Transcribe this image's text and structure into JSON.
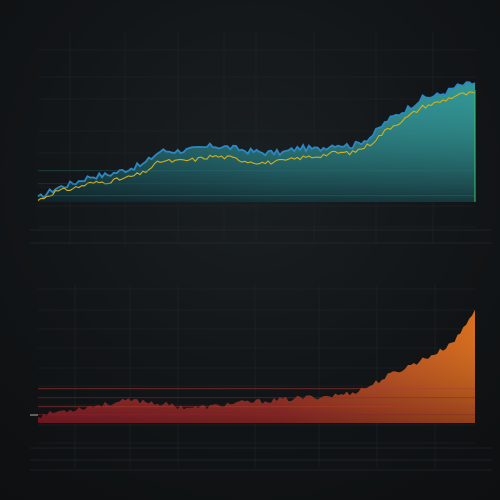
{
  "colors": {
    "background": "#111416",
    "grid": "#2a3135",
    "top_area_light": "#2f8d8e",
    "top_area_dark": "#173a44",
    "top_line_blue": "#2d87c4",
    "top_line_yellow": "#d0b11c",
    "bottom_area_red": "#8f1f2d",
    "bottom_area_orange": "#d56b1c",
    "bottom_axis_red": "#b54545"
  },
  "chart_data": [
    {
      "type": "area",
      "title": "",
      "xlabel": "",
      "ylabel": "",
      "grid": true,
      "x": [
        0,
        4,
        8,
        12,
        16,
        20,
        24,
        28,
        32,
        36,
        40,
        44,
        48,
        52,
        56,
        60,
        64,
        68,
        72,
        76,
        80,
        84,
        88,
        92,
        96,
        100
      ],
      "series": [
        {
          "values": [
            2,
            8,
            11,
            15,
            16,
            19,
            22,
            30,
            30,
            31,
            33,
            32,
            30,
            29,
            29,
            32,
            31,
            34,
            33,
            38,
            48,
            54,
            61,
            63,
            68,
            70
          ]
        },
        {
          "values": [
            1,
            6,
            8,
            11,
            12,
            14,
            17,
            24,
            24,
            25,
            27,
            26,
            24,
            23,
            24,
            26,
            27,
            29,
            29,
            34,
            43,
            49,
            56,
            59,
            63,
            64
          ]
        }
      ],
      "ylim": [
        0,
        100
      ],
      "xlim": [
        0,
        100
      ],
      "annotation_text": "",
      "y_tick_labels": [
        "",
        "",
        "",
        "",
        "",
        "",
        ""
      ],
      "x_tick_labels": [
        "",
        "",
        "",
        "",
        "",
        "",
        "",
        "",
        "",
        ""
      ]
    },
    {
      "type": "area",
      "title": "",
      "xlabel": "",
      "ylabel": "",
      "grid": true,
      "x": [
        0,
        4,
        8,
        12,
        16,
        20,
        24,
        28,
        32,
        36,
        40,
        44,
        48,
        52,
        56,
        60,
        64,
        68,
        72,
        76,
        80,
        84,
        88,
        92,
        96,
        100
      ],
      "series": [
        {
          "values": [
            5,
            8,
            10,
            12,
            14,
            16,
            16,
            14,
            12,
            11,
            12,
            14,
            15,
            16,
            17,
            18,
            19,
            20,
            22,
            27,
            34,
            40,
            46,
            52,
            62,
            82
          ]
        }
      ],
      "ylim": [
        0,
        100
      ],
      "xlim": [
        0,
        100
      ],
      "y_tick_labels": [
        "",
        "",
        "",
        "",
        "",
        "",
        "",
        "",
        ""
      ],
      "x_tick_labels": [
        "",
        "",
        "",
        "",
        "",
        "",
        "",
        "",
        "",
        ""
      ]
    }
  ]
}
